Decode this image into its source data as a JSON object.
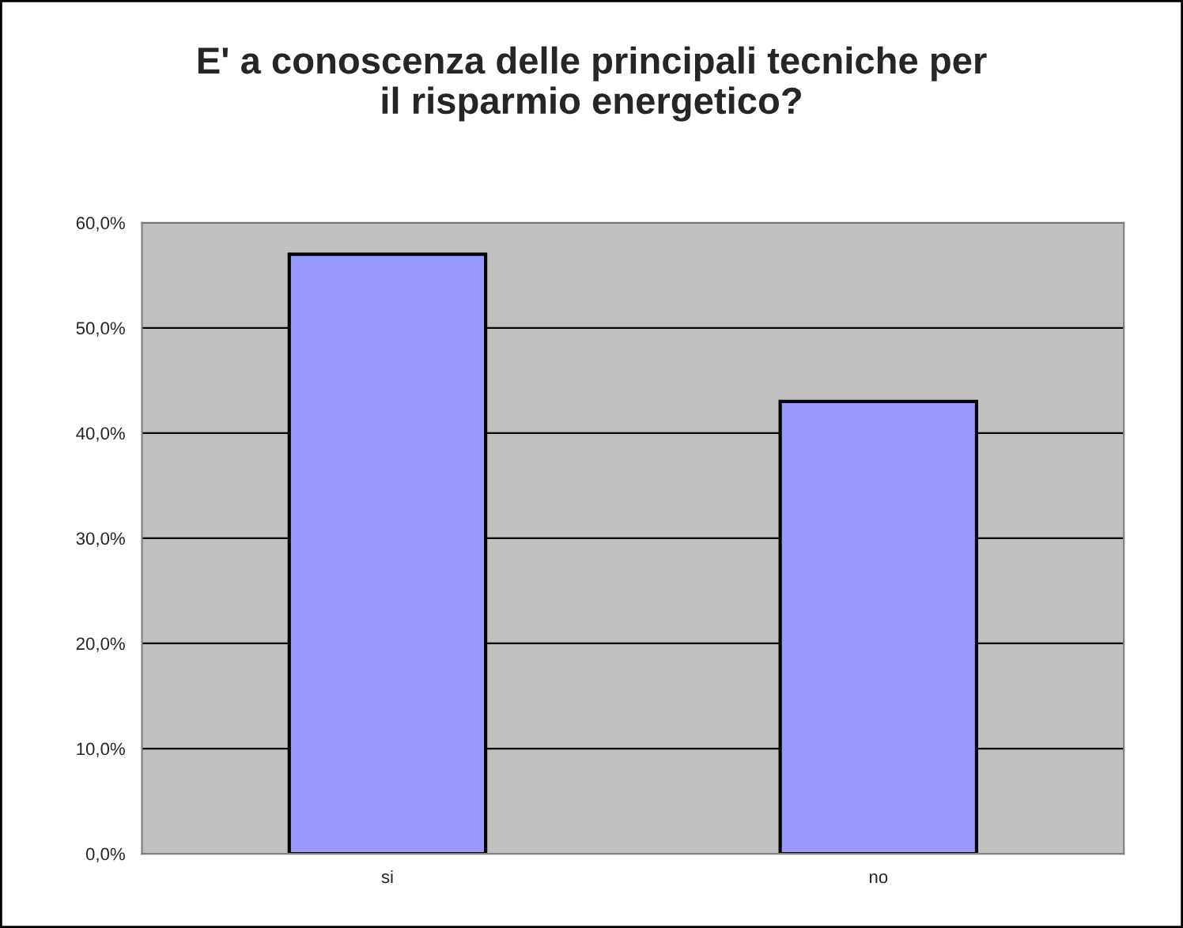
{
  "chart_data": {
    "type": "bar",
    "title": "E' a conoscenza delle principali tecniche per\nil risparmio energetico?",
    "categories": [
      "si",
      "no"
    ],
    "values": [
      57,
      43
    ],
    "color": "#9999ff",
    "ylim": [
      0,
      60
    ],
    "yticks": [
      {
        "value": 0,
        "label": "0,0%"
      },
      {
        "value": 10,
        "label": "10,0%"
      },
      {
        "value": 20,
        "label": "20,0%"
      },
      {
        "value": 30,
        "label": "30,0%"
      },
      {
        "value": 40,
        "label": "40,0%"
      },
      {
        "value": 50,
        "label": "50,0%"
      },
      {
        "value": 60,
        "label": "60,0%"
      }
    ],
    "grid": "y"
  }
}
